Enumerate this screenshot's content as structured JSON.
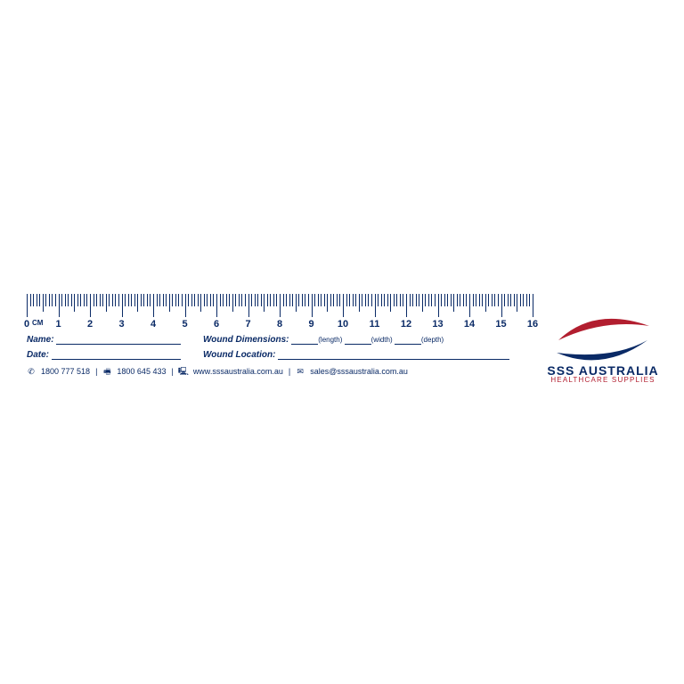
{
  "ruler": {
    "min": 0,
    "max": 16,
    "unit": "CM",
    "labels": [
      "0",
      "1",
      "2",
      "3",
      "4",
      "5",
      "6",
      "7",
      "8",
      "9",
      "10",
      "11",
      "12",
      "13",
      "14",
      "15",
      "16"
    ],
    "pxPerCm": 35.5,
    "tick_color": "#0a2a66",
    "major_h": 26,
    "half_h": 20,
    "minor_h": 14,
    "label_fontsize": 11,
    "unit_fontsize": 8
  },
  "fields": {
    "name_label": "Name:",
    "date_label": "Date:",
    "dimensions_label": "Wound Dimensions:",
    "location_label": "Wound Location:",
    "dim_parts": {
      "length": "(length)",
      "width": "(width)",
      "depth": "(depth)"
    }
  },
  "contact": {
    "phone": "1800 777 518",
    "fax": "1800 645 433",
    "web": "www.sssaustralia.com.au",
    "email": "sales@sssaustralia.com.au",
    "separator": "|"
  },
  "brand": {
    "name": "SSS AUSTRALIA",
    "tagline": "HEALTHCARE SUPPLIES",
    "blue": "#0a2a66",
    "red": "#b21e2f"
  },
  "colors": {
    "ink": "#0a2a66",
    "bg": "#ffffff"
  }
}
